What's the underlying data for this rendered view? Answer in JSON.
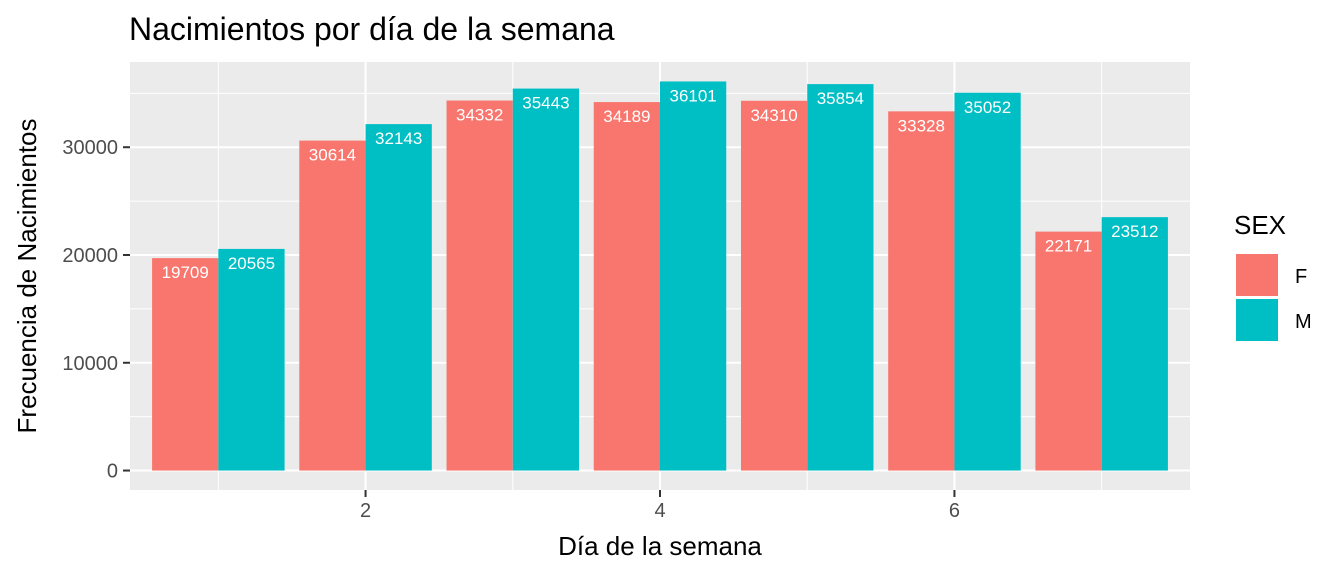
{
  "chart_data": {
    "type": "bar",
    "title": "Nacimientos por día de la semana",
    "xlabel": "Día de la semana",
    "ylabel": "Frecuencia de Nacimientos",
    "x": [
      1,
      2,
      3,
      4,
      5,
      6,
      7
    ],
    "x_ticks": [
      "2",
      "4",
      "6"
    ],
    "y_ticks": [
      "0",
      "10000",
      "20000",
      "30000"
    ],
    "xlim": [
      0.4,
      7.6
    ],
    "ylim": [
      -1805,
      37907
    ],
    "grid": true,
    "legend": {
      "title": "SEX",
      "position": "right"
    },
    "series": [
      {
        "name": "F",
        "color": "#F8766D",
        "values": [
          19709,
          30614,
          34332,
          34189,
          34310,
          33328,
          22171
        ]
      },
      {
        "name": "M",
        "color": "#00BFC4",
        "values": [
          20565,
          32143,
          35443,
          36101,
          35854,
          35052,
          23512
        ]
      }
    ]
  }
}
